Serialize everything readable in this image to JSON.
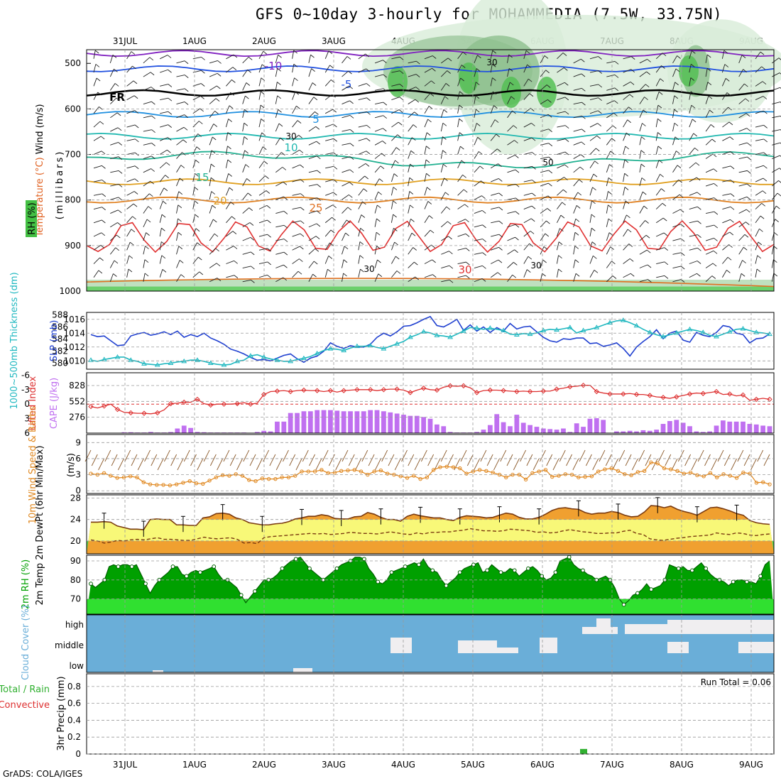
{
  "title": "GFS 0~10day 3-hourly for MOHAMMEDIA (7.5W, 33.75N)",
  "credit": "GrADS: COLA/IGES",
  "run_total": "Run Total = 0.06",
  "dates": [
    "31JUL",
    "1AUG",
    "2AUG",
    "3AUG",
    "4AUG",
    "5AUG",
    "6AUG",
    "7AUG",
    "8AUG",
    "9AUG"
  ],
  "colors": {
    "cape": "#c070f0",
    "lifted": "#dd3030",
    "slp": "#2040d0",
    "thickness": "#20b8c0",
    "wind10": "#e08820",
    "barb10": "#8b5a2b",
    "temp2m": "#7a3a10",
    "dew": "#7a3a10",
    "rh_dark": "#00a000",
    "rh_light": "#30e030",
    "cloud": "#6aaed8",
    "cloudfill": "#f0eef0",
    "precip": "#30b030"
  },
  "chart_data": [
    {
      "type": "heatmap",
      "name": "upper-air",
      "ylabel": "(millibars)",
      "side_labels": [
        "RH (%)",
        "Temperature (°C)",
        "Wind (m/s)"
      ],
      "y_ticks": [
        500,
        600,
        700,
        800,
        900,
        1000
      ],
      "isotherm_labels": [
        "-10",
        "-5",
        "FR",
        "5",
        "10",
        "15",
        "20",
        "25",
        "30"
      ],
      "rh_labels": [
        "30",
        "50",
        "30",
        "30",
        "30"
      ]
    },
    {
      "type": "line",
      "name": "slp-thickness",
      "y1label": "1000~500mb Thickness (dm)",
      "y2label": "SLP (mb)",
      "y1_ticks": [
        580,
        582,
        584,
        586,
        588
      ],
      "y2_ticks": [
        1010,
        1012,
        1014,
        1016
      ],
      "y1lim": [
        579,
        588.4
      ],
      "y2lim": [
        1008.8,
        1017
      ],
      "series": [
        {
          "name": "SLP (mb)",
          "axis": "right",
          "values": [
            1013.8,
            1013.5,
            1013.6,
            1012.9,
            1012.2,
            1012.3,
            1013.6,
            1013.9,
            1014.1,
            1013.7,
            1013.9,
            1014.2,
            1013.8,
            1014.3,
            1013.4,
            1013.8,
            1013.5,
            1014.0,
            1013.3,
            1012.9,
            1012.4,
            1011.7,
            1011.4,
            1011.0,
            1010.5,
            1010.1,
            1010.2,
            1010.0,
            1010.4,
            1010.8,
            1011.0,
            1010.3,
            1009.8,
            1010.4,
            1010.7,
            1011.4,
            1012.6,
            1012.1,
            1011.8,
            1012.2,
            1012.0,
            1012.0,
            1012.4,
            1013.4,
            1014.0,
            1013.6,
            1014.2,
            1015.0,
            1015.1,
            1015.5,
            1016.0,
            1016.4,
            1015.1,
            1014.9,
            1015.4,
            1016.0,
            1014.4,
            1015.2,
            1014.3,
            1014.9,
            1014.1,
            1014.8,
            1014.3,
            1015.4,
            1014.6,
            1014.9,
            1015.0,
            1014.2,
            1013.4,
            1012.9,
            1012.7,
            1013.2,
            1013.1,
            1013.3,
            1013.3,
            1012.5,
            1012.6,
            1012.1,
            1012.3,
            1012.6,
            1011.8,
            1010.7,
            1012.0,
            1012.8,
            1013.5,
            1014.5,
            1013.2,
            1014.0,
            1014.3,
            1013.0,
            1012.7,
            1014.1,
            1013.7,
            1013.5,
            1014.1,
            1015.1,
            1014.9,
            1014.0,
            1013.8,
            1012.6,
            1013.2,
            1013.3,
            1013.9
          ]
        },
        {
          "name": "1000~500mb Thickness (dm)",
          "axis": "left",
          "values": [
            580.5,
            580.3,
            580.6,
            580.8,
            581.0,
            581.0,
            580.5,
            580.3,
            579.9,
            579.8,
            579.7,
            579.9,
            580.0,
            580.2,
            580.3,
            580.5,
            580.5,
            580.3,
            580.0,
            579.8,
            579.7,
            579.8,
            580.3,
            580.5,
            581.2,
            581.4,
            581.0,
            580.7,
            580.5,
            580.3,
            580.3,
            580.6,
            580.8,
            581.1,
            581.6,
            582.1,
            582.4,
            582.3,
            582.1,
            582.5,
            582.8,
            582.8,
            582.9,
            582.6,
            582.4,
            582.8,
            583.2,
            583.6,
            584.3,
            584.7,
            585.2,
            585.0,
            584.6,
            584.5,
            584.3,
            584.8,
            585.3,
            585.9,
            585.8,
            585.6,
            585.8,
            585.6,
            585.4,
            584.8,
            584.7,
            584.9,
            584.8,
            585.0,
            585.4,
            585.6,
            585.5,
            585.7,
            585.9,
            585.0,
            585.4,
            585.6,
            585.9,
            586.3,
            586.7,
            587.0,
            587.1,
            586.7,
            586.2,
            585.6,
            585.1,
            584.7,
            584.4,
            584.7,
            585.0,
            585.3,
            585.6,
            585.4,
            585.1,
            584.6,
            584.4,
            584.8,
            585.2,
            585.6,
            585.7,
            585.4,
            585.1,
            585.0,
            584.8
          ]
        }
      ]
    },
    {
      "type": "bar",
      "name": "cape-lifted",
      "y1label": "Lifted Index",
      "y2label": "CAPE (J/kg)",
      "li_ticks": [
        "-6",
        "-3",
        "0",
        "3",
        "6"
      ],
      "cape_ticks": [
        276,
        552,
        828
      ],
      "cape_values": [
        0,
        0,
        0,
        0,
        0,
        15,
        15,
        10,
        10,
        20,
        10,
        10,
        18,
        80,
        130,
        90,
        20,
        15,
        10,
        10,
        10,
        10,
        10,
        10,
        0,
        20,
        40,
        30,
        200,
        200,
        350,
        350,
        380,
        380,
        400,
        400,
        400,
        390,
        380,
        380,
        380,
        380,
        400,
        400,
        380,
        360,
        340,
        320,
        300,
        300,
        280,
        250,
        150,
        120,
        20,
        10,
        10,
        10,
        20,
        60,
        140,
        330,
        190,
        120,
        320,
        180,
        140,
        110,
        80,
        70,
        60,
        80,
        20,
        170,
        110,
        250,
        260,
        230,
        0,
        30,
        30,
        40,
        30,
        50,
        40,
        60,
        160,
        210,
        230,
        180,
        120,
        30,
        20,
        30,
        130,
        220,
        200,
        200,
        200,
        160,
        150,
        130,
        120
      ],
      "li_values": [
        0.5,
        0.8,
        0.4,
        0.0,
        1.1,
        1.7,
        1.8,
        1.9,
        1.9,
        2.0,
        1.8,
        1.2,
        -0.1,
        -0.2,
        -0.4,
        -0.4,
        -1.0,
        -0.1,
        0.2,
        0.0,
        0.0,
        0.0,
        -0.1,
        -0.3,
        0.0,
        -0.2,
        -2.0,
        -2.6,
        -2.7,
        -2.8,
        -2.6,
        -2.8,
        -2.9,
        -2.8,
        -2.8,
        -2.6,
        -2.8,
        -2.5,
        -2.8,
        -2.9,
        -3.0,
        -3.0,
        -3.0,
        -2.8,
        -3.0,
        -3.1,
        -3.1,
        -2.9,
        -2.4,
        -2.9,
        -3.3,
        -3.0,
        -2.9,
        -3.5,
        -3.8,
        -3.7,
        -3.8,
        -3.4,
        -2.4,
        -2.8,
        -2.9,
        -2.9,
        -2.8,
        -2.7,
        -2.6,
        -2.7,
        -2.6,
        -2.6,
        -2.7,
        -2.7,
        -3.1,
        -3.3,
        -3.6,
        -3.7,
        -3.9,
        -3.9,
        -2.6,
        -2.3,
        -2.1,
        -2.1,
        -2.1,
        -2.2,
        -2.0,
        -2.0,
        -1.8,
        -1.5,
        -1.4,
        -1.2,
        -1.5,
        -1.8,
        -2.1,
        -2.3,
        -2.2,
        -2.4,
        -2.6,
        -2.0,
        -2.1,
        -1.7,
        -1.9,
        -0.8,
        -1.0,
        -1.2,
        -1.0
      ]
    },
    {
      "type": "line",
      "name": "wind10m",
      "ylabel_left": "10m Wind Speed & Barbs",
      "ylabel_right": "(m/s)",
      "y_ticks": [
        0,
        3,
        6,
        9
      ],
      "ylim": [
        -0.5,
        10.5
      ],
      "values": [
        3.2,
        3.0,
        3.3,
        2.8,
        2.4,
        2.5,
        2.7,
        2.5,
        1.6,
        1.2,
        1.1,
        1.1,
        1.0,
        1.2,
        1.5,
        1.8,
        1.4,
        1.3,
        1.9,
        2.5,
        2.9,
        2.8,
        3.1,
        2.8,
        2.0,
        1.8,
        2.3,
        2.2,
        2.2,
        2.5,
        2.5,
        2.8,
        3.6,
        3.6,
        3.6,
        3.9,
        3.3,
        3.4,
        3.7,
        3.8,
        3.9,
        3.6,
        3.0,
        3.6,
        3.8,
        3.2,
        3.0,
        2.7,
        2.4,
        2.8,
        2.2,
        2.5,
        3.9,
        4.4,
        4.5,
        4.4,
        4.2,
        3.2,
        3.6,
        3.9,
        3.7,
        3.4,
        3.0,
        2.5,
        3.0,
        3.0,
        2.1,
        3.3,
        3.6,
        3.9,
        2.6,
        2.8,
        3.1,
        3.0,
        2.5,
        2.6,
        2.7,
        3.6,
        4.0,
        4.2,
        3.7,
        3.1,
        2.9,
        3.5,
        3.7,
        5.3,
        5.1,
        4.2,
        4.0,
        3.7,
        3.2,
        3.4,
        2.9,
        2.7,
        3.3,
        2.5,
        3.1,
        2.8,
        2.4,
        3.4,
        3.2,
        1.5,
        1.6,
        1.2
      ]
    },
    {
      "type": "area",
      "name": "temp2m",
      "ylabel": "2m Temp 2m DewPt (6hr Min/Max)",
      "y_ticks": [
        20,
        24,
        28
      ],
      "ylim": [
        17.6,
        28.6
      ],
      "temp_values": [
        23.5,
        23.5,
        23.6,
        23.5,
        22.8,
        22.5,
        22.2,
        22.2,
        22.1,
        24.0,
        24.1,
        24.0,
        24.0,
        23.0,
        23.0,
        22.9,
        22.9,
        24.3,
        24.5,
        25.1,
        25.2,
        25.0,
        24.3,
        24.0,
        23.4,
        23.2,
        23.0,
        23.0,
        23.2,
        23.3,
        23.6,
        24.1,
        24.3,
        24.6,
        24.6,
        24.9,
        24.7,
        24.2,
        24.1,
        24.1,
        24.5,
        24.6,
        25.3,
        25.0,
        24.4,
        24.0,
        24.0,
        23.7,
        24.6,
        25.0,
        24.7,
        24.5,
        24.3,
        24.3,
        24.0,
        23.8,
        24.4,
        24.7,
        24.6,
        24.5,
        24.3,
        24.4,
        24.8,
        25.2,
        25.0,
        24.4,
        24.1,
        24.1,
        24.4,
        25.0,
        25.7,
        26.1,
        26.2,
        26.0,
        25.9,
        25.3,
        25.0,
        25.2,
        25.2,
        25.5,
        25.3,
        24.8,
        24.5,
        24.6,
        25.4,
        26.6,
        26.5,
        26.2,
        26.5,
        25.9,
        25.5,
        25.2,
        24.8,
        25.5,
        26.2,
        26.3,
        26.0,
        25.6,
        25.1,
        24.8,
        23.8,
        23.4,
        23.2,
        23.1
      ],
      "dew_values": [
        20.2,
        20.0,
        19.6,
        19.8,
        20.1,
        20.0,
        20.2,
        20.3,
        20.2,
        20.4,
        20.6,
        20.3,
        20.3,
        20.2,
        20.1,
        20.1,
        20.4,
        20.7,
        20.5,
        20.4,
        20.5,
        20.6,
        20.3,
        19.6,
        19.7,
        19.5,
        20.6,
        20.8,
        20.9,
        21.0,
        21.1,
        21.2,
        21.3,
        21.4,
        21.3,
        21.4,
        21.2,
        21.3,
        21.4,
        21.6,
        21.5,
        21.4,
        21.4,
        21.3,
        21.5,
        21.7,
        21.5,
        21.3,
        21.2,
        21.5,
        21.3,
        21.6,
        21.6,
        21.7,
        21.7,
        21.9,
        22.0,
        22.3,
        22.1,
        21.9,
        21.9,
        21.8,
        21.9,
        22.2,
        22.1,
        22.0,
        21.9,
        21.6,
        21.7,
        21.5,
        21.6,
        21.9,
        22.1,
        21.9,
        21.7,
        21.6,
        21.4,
        21.4,
        21.5,
        21.5,
        21.8,
        22.0,
        21.4,
        21.2,
        20.4,
        20.2,
        20.1,
        20.3,
        20.5,
        20.6,
        20.8,
        20.9,
        21.0,
        21.1,
        21.5,
        21.3,
        21.2,
        21.5,
        21.4,
        21.1,
        21.0,
        21.2,
        21.3
      ]
    },
    {
      "type": "area",
      "name": "rh2m",
      "ylabel": "2m RH (%)",
      "y_ticks": [
        70,
        80,
        90
      ],
      "ylim": [
        62,
        93
      ],
      "values": [
        78,
        76,
        78,
        80,
        87,
        88,
        87,
        88,
        88,
        87,
        88,
        83,
        78,
        73,
        77,
        80,
        82,
        84,
        87,
        87,
        83,
        82,
        84,
        85,
        84,
        85,
        86,
        87,
        83,
        80,
        80,
        78,
        76,
        72,
        68,
        71,
        74,
        77,
        80,
        80,
        81,
        83,
        86,
        88,
        90,
        91,
        92,
        89,
        86,
        84,
        82,
        80,
        82,
        84,
        86,
        88,
        89,
        90,
        92,
        92,
        91,
        86,
        83,
        79,
        78,
        80,
        84,
        85,
        86,
        87,
        88,
        89,
        88,
        91,
        87,
        85,
        84,
        80,
        77,
        79,
        81,
        84,
        86,
        87,
        88,
        89,
        84,
        85,
        88,
        86,
        84,
        84,
        86,
        85,
        82,
        84,
        86,
        87,
        85,
        82,
        80,
        81,
        84,
        90,
        91,
        92,
        88,
        86,
        85,
        83,
        82,
        80,
        81,
        82,
        80,
        76,
        70,
        67,
        69,
        72,
        73,
        75,
        78,
        75,
        76,
        77,
        80,
        88,
        87,
        86,
        87,
        85,
        85,
        87,
        89,
        86,
        83,
        81,
        80,
        79,
        77,
        79,
        80,
        80,
        79,
        79,
        78,
        82,
        88,
        90
      ]
    },
    {
      "type": "bar",
      "name": "cloud-cover",
      "ylabel": "Cloud Cover (%)",
      "levels": [
        "high",
        "middle",
        "low"
      ]
    },
    {
      "type": "bar",
      "name": "precip",
      "ylabel": "3hr Precip (mm)",
      "legend": [
        "Total / Rain",
        "Convective"
      ],
      "y_ticks": [
        "0",
        "0.2",
        "0.4",
        "0.6",
        "0.8"
      ],
      "ylim": [
        0,
        0.95
      ],
      "values_nonzero": [
        {
          "date": "6AUG",
          "index": 61,
          "value": 0.06
        }
      ]
    }
  ]
}
